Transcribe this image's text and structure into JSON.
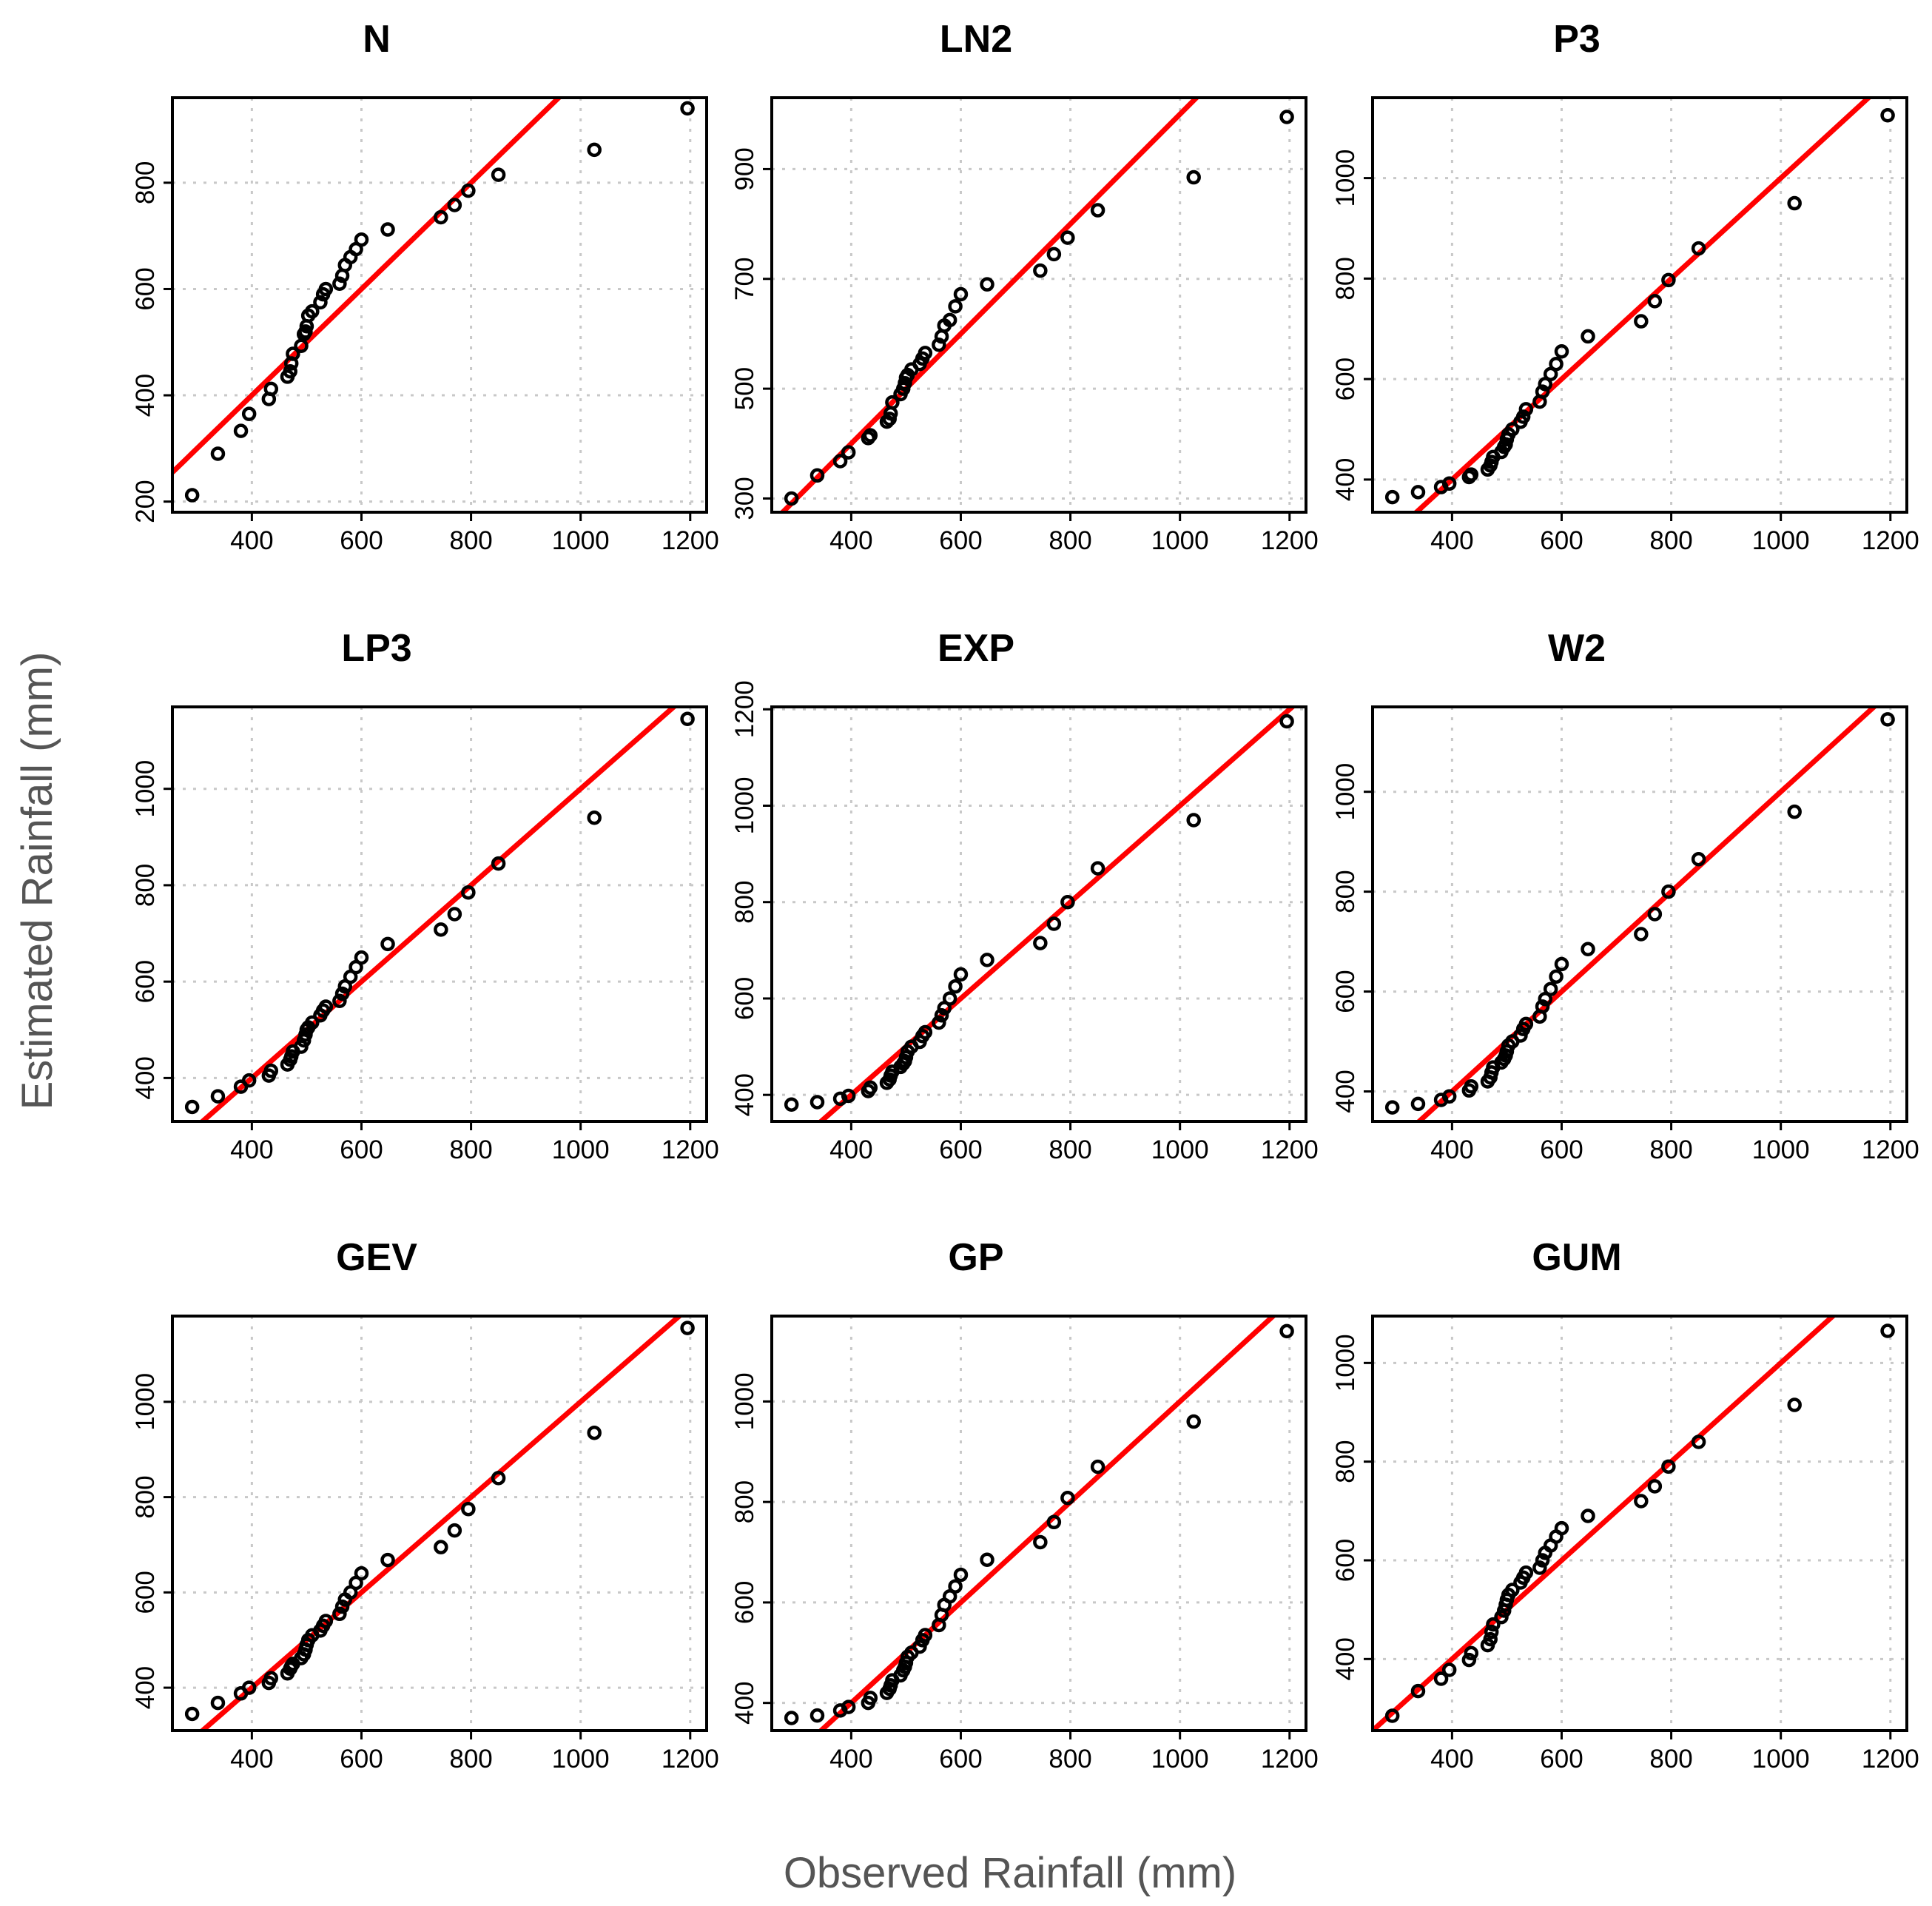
{
  "figure": {
    "xlabel": "Observed Rainfall (mm)",
    "ylabel": "Estimated Rainfall (mm)",
    "colors": {
      "reference_line": "#ff0000",
      "points": "#000000",
      "grid": "#c8c8c8",
      "axis_label": "#555555"
    }
  },
  "chart_data": [
    {
      "type": "scatter",
      "title": "N",
      "xlim": [
        255,
        1230
      ],
      "ylim": [
        180,
        960
      ],
      "x_ticks": [
        400,
        600,
        800,
        1000,
        1200
      ],
      "y_ticks": [
        200,
        400,
        600,
        800
      ],
      "x": [
        291,
        338,
        380,
        395,
        431,
        435,
        465,
        470,
        472,
        475,
        490,
        495,
        498,
        500,
        503,
        510,
        525,
        530,
        535,
        560,
        565,
        570,
        580,
        590,
        600,
        648,
        745,
        770,
        795,
        850,
        1025,
        1195
      ],
      "y": [
        212,
        290,
        333,
        365,
        393,
        412,
        435,
        445,
        460,
        478,
        493,
        515,
        520,
        530,
        550,
        558,
        575,
        590,
        600,
        610,
        625,
        645,
        660,
        675,
        693,
        712,
        735,
        758,
        785,
        815,
        862,
        940
      ],
      "reference_line": [
        [
          255,
          255
        ],
        [
          1230,
          1230
        ]
      ],
      "grid": true
    },
    {
      "type": "scatter",
      "title": "LN2",
      "xlim": [
        255,
        1230
      ],
      "ylim": [
        275,
        1030
      ],
      "x_ticks": [
        400,
        600,
        800,
        1000,
        1200
      ],
      "y_ticks": [
        300,
        500,
        700,
        900
      ],
      "x": [
        291,
        338,
        380,
        395,
        431,
        435,
        465,
        470,
        472,
        475,
        490,
        495,
        498,
        500,
        503,
        510,
        525,
        530,
        535,
        560,
        565,
        570,
        580,
        590,
        600,
        648,
        745,
        770,
        795,
        850,
        1025,
        1195
      ],
      "y": [
        300,
        342,
        368,
        384,
        410,
        415,
        440,
        445,
        455,
        475,
        490,
        500,
        510,
        520,
        525,
        535,
        545,
        555,
        565,
        580,
        595,
        615,
        625,
        650,
        672,
        690,
        715,
        745,
        775,
        825,
        885,
        995
      ],
      "reference_line": [
        [
          255,
          255
        ],
        [
          1230,
          1230
        ]
      ],
      "grid": true
    },
    {
      "type": "scatter",
      "title": "P3",
      "xlim": [
        255,
        1230
      ],
      "ylim": [
        335,
        1160
      ],
      "x_ticks": [
        400,
        600,
        800,
        1000,
        1200
      ],
      "y_ticks": [
        400,
        600,
        800,
        1000
      ],
      "x": [
        291,
        338,
        380,
        395,
        431,
        435,
        465,
        470,
        472,
        475,
        490,
        495,
        498,
        500,
        503,
        510,
        525,
        530,
        535,
        560,
        565,
        570,
        580,
        590,
        600,
        648,
        745,
        770,
        795,
        850,
        1025,
        1195
      ],
      "y": [
        365,
        375,
        385,
        392,
        405,
        410,
        420,
        428,
        435,
        445,
        455,
        465,
        470,
        480,
        490,
        500,
        515,
        525,
        540,
        555,
        575,
        590,
        610,
        630,
        655,
        685,
        715,
        755,
        797,
        860,
        950,
        1125
      ],
      "reference_line": [
        [
          255,
          255
        ],
        [
          1230,
          1230
        ]
      ],
      "grid": true
    },
    {
      "type": "scatter",
      "title": "LP3",
      "xlim": [
        255,
        1230
      ],
      "ylim": [
        310,
        1170
      ],
      "x_ticks": [
        400,
        600,
        800,
        1000,
        1200
      ],
      "y_ticks": [
        400,
        600,
        800,
        1000
      ],
      "x": [
        291,
        338,
        380,
        395,
        431,
        435,
        465,
        470,
        472,
        475,
        490,
        495,
        498,
        500,
        503,
        510,
        525,
        530,
        535,
        560,
        565,
        570,
        580,
        590,
        600,
        648,
        745,
        770,
        795,
        850,
        1025,
        1195
      ],
      "y": [
        340,
        362,
        382,
        395,
        405,
        415,
        428,
        438,
        445,
        455,
        465,
        478,
        490,
        500,
        505,
        515,
        530,
        540,
        548,
        560,
        575,
        590,
        610,
        630,
        650,
        678,
        708,
        740,
        785,
        845,
        940,
        1145
      ],
      "reference_line": [
        [
          255,
          255
        ],
        [
          1230,
          1230
        ]
      ],
      "grid": true
    },
    {
      "type": "scatter",
      "title": "EXP",
      "xlim": [
        255,
        1230
      ],
      "ylim": [
        345,
        1205
      ],
      "x_ticks": [
        400,
        600,
        800,
        1000,
        1200
      ],
      "y_ticks": [
        400,
        600,
        800,
        1000,
        1200
      ],
      "x": [
        291,
        338,
        380,
        395,
        431,
        435,
        465,
        470,
        472,
        475,
        490,
        495,
        498,
        500,
        503,
        510,
        525,
        530,
        535,
        560,
        565,
        570,
        580,
        590,
        600,
        648,
        745,
        770,
        795,
        850,
        1025,
        1195
      ],
      "y": [
        380,
        385,
        392,
        398,
        408,
        415,
        425,
        432,
        440,
        448,
        458,
        465,
        470,
        478,
        490,
        500,
        510,
        522,
        530,
        550,
        565,
        580,
        600,
        625,
        650,
        680,
        715,
        755,
        800,
        870,
        970,
        1175
      ],
      "reference_line": [
        [
          255,
          255
        ],
        [
          1230,
          1230
        ]
      ],
      "grid": true
    },
    {
      "type": "scatter",
      "title": "W2",
      "xlim": [
        255,
        1230
      ],
      "ylim": [
        340,
        1170
      ],
      "x_ticks": [
        400,
        600,
        800,
        1000,
        1200
      ],
      "y_ticks": [
        400,
        600,
        800,
        1000
      ],
      "x": [
        291,
        338,
        380,
        395,
        431,
        435,
        465,
        470,
        472,
        475,
        490,
        495,
        498,
        500,
        503,
        510,
        525,
        530,
        535,
        560,
        565,
        570,
        580,
        590,
        600,
        648,
        745,
        770,
        795,
        850,
        1025,
        1195
      ],
      "y": [
        368,
        375,
        383,
        390,
        402,
        410,
        420,
        428,
        438,
        448,
        458,
        465,
        472,
        480,
        492,
        500,
        512,
        525,
        535,
        550,
        570,
        585,
        605,
        630,
        655,
        685,
        715,
        755,
        800,
        865,
        960,
        1145
      ],
      "reference_line": [
        [
          255,
          255
        ],
        [
          1230,
          1230
        ]
      ],
      "grid": true
    },
    {
      "type": "scatter",
      "title": "GEV",
      "xlim": [
        255,
        1230
      ],
      "ylim": [
        310,
        1180
      ],
      "x_ticks": [
        400,
        600,
        800,
        1000,
        1200
      ],
      "y_ticks": [
        400,
        600,
        800,
        1000
      ],
      "x": [
        291,
        338,
        380,
        395,
        431,
        435,
        465,
        470,
        472,
        475,
        490,
        495,
        498,
        500,
        503,
        510,
        525,
        530,
        535,
        560,
        565,
        570,
        580,
        590,
        600,
        648,
        745,
        770,
        795,
        850,
        1025,
        1195
      ],
      "y": [
        345,
        368,
        388,
        400,
        410,
        420,
        430,
        440,
        445,
        450,
        462,
        470,
        480,
        490,
        500,
        510,
        520,
        530,
        540,
        555,
        570,
        585,
        600,
        620,
        640,
        668,
        695,
        730,
        775,
        840,
        935,
        1155
      ],
      "reference_line": [
        [
          255,
          255
        ],
        [
          1230,
          1230
        ]
      ],
      "grid": true
    },
    {
      "type": "scatter",
      "title": "GP",
      "xlim": [
        255,
        1230
      ],
      "ylim": [
        345,
        1170
      ],
      "x_ticks": [
        400,
        600,
        800,
        1000,
        1200
      ],
      "y_ticks": [
        400,
        600,
        800,
        1000
      ],
      "x": [
        291,
        338,
        380,
        395,
        431,
        435,
        465,
        470,
        472,
        475,
        490,
        495,
        498,
        500,
        503,
        510,
        525,
        530,
        535,
        560,
        565,
        570,
        580,
        590,
        600,
        648,
        745,
        770,
        795,
        850,
        1025,
        1195
      ],
      "y": [
        370,
        375,
        385,
        392,
        400,
        410,
        420,
        428,
        435,
        445,
        455,
        465,
        472,
        480,
        492,
        500,
        512,
        525,
        535,
        555,
        575,
        595,
        612,
        632,
        655,
        685,
        720,
        760,
        808,
        870,
        960,
        1140
      ],
      "reference_line": [
        [
          255,
          255
        ],
        [
          1230,
          1230
        ]
      ],
      "grid": true
    },
    {
      "type": "scatter",
      "title": "GUM",
      "xlim": [
        255,
        1230
      ],
      "ylim": [
        255,
        1095
      ],
      "x_ticks": [
        400,
        600,
        800,
        1000,
        1200
      ],
      "y_ticks": [
        400,
        600,
        800,
        1000
      ],
      "x": [
        291,
        338,
        380,
        395,
        431,
        435,
        465,
        470,
        472,
        475,
        490,
        495,
        498,
        500,
        503,
        510,
        525,
        530,
        535,
        560,
        565,
        570,
        580,
        590,
        600,
        648,
        745,
        770,
        795,
        850,
        1025,
        1195
      ],
      "y": [
        285,
        335,
        360,
        378,
        398,
        412,
        428,
        440,
        455,
        470,
        485,
        498,
        510,
        520,
        530,
        540,
        555,
        565,
        575,
        585,
        600,
        615,
        630,
        648,
        665,
        690,
        720,
        750,
        790,
        840,
        915,
        1065
      ],
      "reference_line": [
        [
          255,
          255
        ],
        [
          1230,
          1230
        ]
      ],
      "grid": true
    }
  ]
}
